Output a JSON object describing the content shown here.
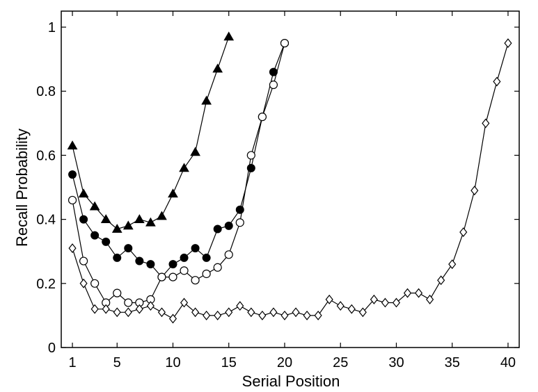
{
  "chart_data": {
    "type": "line",
    "xlabel": "Serial Position",
    "ylabel": "Recall Probability",
    "xlim": [
      0,
      41
    ],
    "ylim": [
      0,
      1.05
    ],
    "xticks": [
      1,
      5,
      10,
      15,
      20,
      25,
      30,
      35,
      40
    ],
    "yticks": [
      0,
      0.2,
      0.4,
      0.6,
      0.8,
      1
    ],
    "ytick_labels": [
      "0",
      "0.2",
      "0.4",
      "0.6",
      "0.8",
      "1"
    ],
    "grid": false,
    "series": [
      {
        "marker": "triangle-filled",
        "x": [
          1,
          2,
          3,
          4,
          5,
          6,
          7,
          8,
          9,
          10,
          11,
          12,
          13,
          14,
          15
        ],
        "values": [
          0.63,
          0.48,
          0.44,
          0.4,
          0.37,
          0.38,
          0.4,
          0.39,
          0.41,
          0.48,
          0.56,
          0.61,
          0.77,
          0.87,
          0.97
        ]
      },
      {
        "marker": "circle-filled",
        "x": [
          1,
          2,
          3,
          4,
          5,
          6,
          7,
          8,
          9,
          10,
          11,
          12,
          13,
          14,
          15,
          16,
          17,
          18,
          19,
          20
        ],
        "values": [
          0.54,
          0.4,
          0.35,
          0.33,
          0.28,
          0.31,
          0.27,
          0.26,
          0.22,
          0.26,
          0.28,
          0.31,
          0.28,
          0.37,
          0.38,
          0.43,
          0.56,
          0.72,
          0.86,
          0.95
        ]
      },
      {
        "marker": "circle-open",
        "x": [
          1,
          2,
          3,
          4,
          5,
          6,
          7,
          8,
          9,
          10,
          11,
          12,
          13,
          14,
          15,
          16,
          17,
          18,
          19,
          20
        ],
        "values": [
          0.46,
          0.27,
          0.2,
          0.14,
          0.17,
          0.14,
          0.14,
          0.15,
          0.22,
          0.22,
          0.24,
          0.21,
          0.23,
          0.25,
          0.29,
          0.39,
          0.6,
          0.72,
          0.82,
          0.95
        ]
      },
      {
        "marker": "diamond-open",
        "x": [
          1,
          2,
          3,
          4,
          5,
          6,
          7,
          8,
          9,
          10,
          11,
          12,
          13,
          14,
          15,
          16,
          17,
          18,
          19,
          20,
          21,
          22,
          23,
          24,
          25,
          26,
          27,
          28,
          29,
          30,
          31,
          32,
          33,
          34,
          35,
          36,
          37,
          38,
          39,
          40
        ],
        "values": [
          0.31,
          0.2,
          0.12,
          0.12,
          0.11,
          0.11,
          0.12,
          0.13,
          0.11,
          0.09,
          0.14,
          0.11,
          0.1,
          0.1,
          0.11,
          0.13,
          0.11,
          0.1,
          0.11,
          0.1,
          0.11,
          0.1,
          0.1,
          0.15,
          0.13,
          0.12,
          0.11,
          0.15,
          0.14,
          0.14,
          0.17,
          0.17,
          0.15,
          0.21,
          0.26,
          0.36,
          0.49,
          0.7,
          0.83,
          0.95
        ]
      }
    ]
  }
}
